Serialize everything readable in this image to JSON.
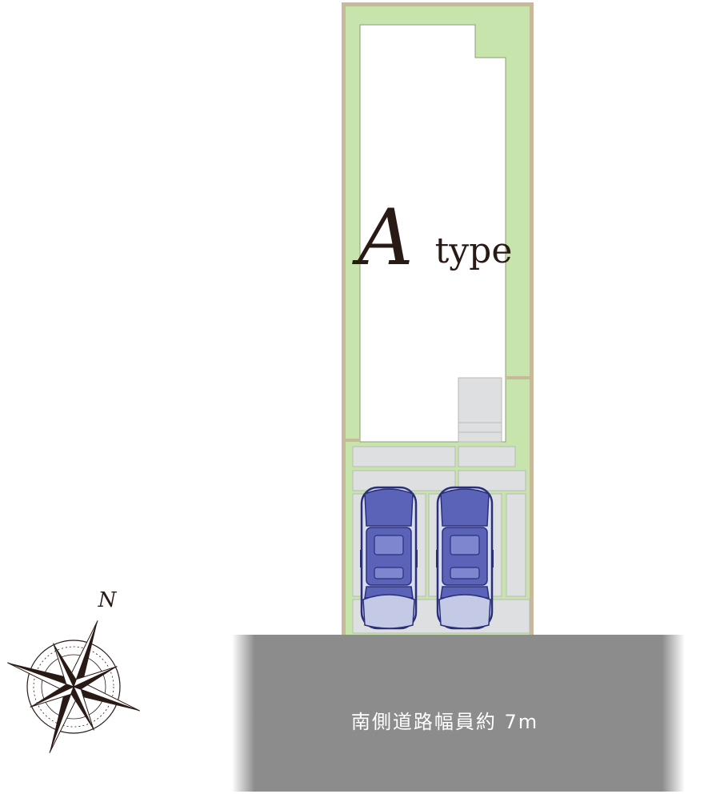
{
  "plan": {
    "type_letter": "A",
    "type_word": "type",
    "road_label": "南側道路幅員約 7m",
    "compass_north": "N"
  },
  "colors": {
    "garden_green": "#c8e4ad",
    "boundary_tan": "#c9b99b",
    "paving_gray": "#dedfe0",
    "road_gray": "#8a8a8a",
    "car_body": "#d8dcef",
    "car_glass": "#5a63b8",
    "car_outline": "#2a2f7a",
    "compass_dark": "#2a1a16"
  },
  "cars": [
    {
      "label": "car-left"
    },
    {
      "label": "car-right"
    }
  ]
}
